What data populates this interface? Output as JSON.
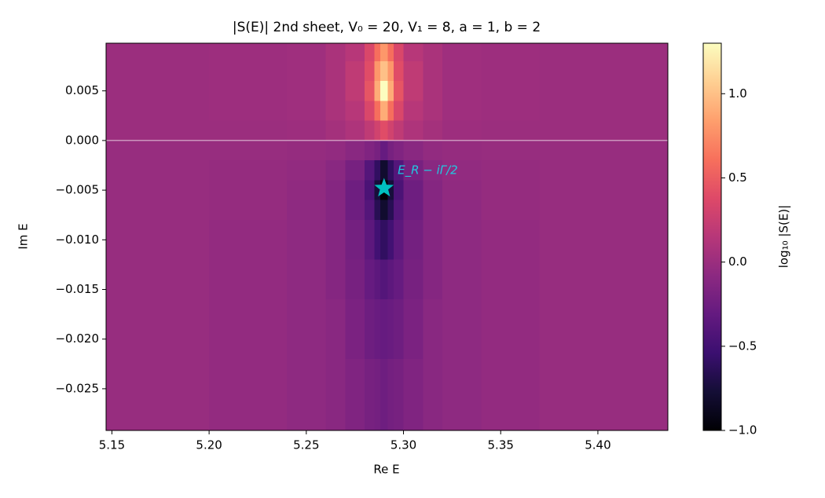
{
  "chart_data": {
    "type": "heatmap",
    "title": "|S(E)| 2nd sheet, V₀ = 20, V₁ = 8, a = 1, b = 2",
    "x_label": "Re E",
    "y_label": "Im E",
    "xlim": [
      5.147,
      5.436
    ],
    "ylim": [
      -0.0292,
      0.0098
    ],
    "xticks": [
      {
        "value": 5.15,
        "label": "5.15"
      },
      {
        "value": 5.2,
        "label": "5.20"
      },
      {
        "value": 5.25,
        "label": "5.25"
      },
      {
        "value": 5.3,
        "label": "5.30"
      },
      {
        "value": 5.35,
        "label": "5.35"
      },
      {
        "value": 5.4,
        "label": "5.40"
      }
    ],
    "yticks": [
      {
        "value": 0.005,
        "label": "0.005"
      },
      {
        "value": 0,
        "label": "0.000"
      },
      {
        "value": -0.005,
        "label": "−0.005"
      },
      {
        "value": -0.01,
        "label": "−0.010"
      },
      {
        "value": -0.015,
        "label": "−0.015"
      },
      {
        "value": -0.02,
        "label": "−0.020"
      },
      {
        "value": -0.025,
        "label": "−0.025"
      }
    ],
    "x_edges": [
      5.147,
      5.2,
      5.24,
      5.26,
      5.27,
      5.28,
      5.285,
      5.288,
      5.292,
      5.295,
      5.3,
      5.31,
      5.32,
      5.34,
      5.37,
      5.436
    ],
    "y_edges": [
      0.0098,
      0.008,
      0.006,
      0.004,
      0.002,
      0.0,
      -0.002,
      -0.004,
      -0.006,
      -0.008,
      -0.012,
      -0.016,
      -0.022,
      -0.0292
    ],
    "z": [
      [
        0.0,
        0.01,
        0.02,
        0.08,
        0.15,
        0.35,
        0.6,
        0.8,
        0.6,
        0.35,
        0.15,
        0.08,
        0.02,
        0.01,
        0.0
      ],
      [
        0.0,
        0.01,
        0.02,
        0.08,
        0.2,
        0.4,
        0.8,
        1.0,
        0.8,
        0.4,
        0.2,
        0.08,
        0.02,
        0.01,
        0.0
      ],
      [
        0.0,
        0.01,
        0.02,
        0.08,
        0.2,
        0.45,
        0.9,
        1.3,
        0.9,
        0.45,
        0.2,
        0.08,
        0.02,
        0.01,
        0.0
      ],
      [
        0.0,
        0.01,
        0.02,
        0.08,
        0.15,
        0.35,
        0.6,
        0.9,
        0.6,
        0.35,
        0.15,
        0.08,
        0.02,
        0.01,
        0.0
      ],
      [
        0.0,
        0.0,
        0.01,
        0.05,
        0.1,
        0.2,
        0.3,
        0.4,
        0.3,
        0.2,
        0.1,
        0.05,
        0.01,
        0.0,
        0.0
      ],
      [
        -0.02,
        -0.02,
        -0.03,
        -0.05,
        -0.1,
        -0.15,
        -0.2,
        -0.3,
        -0.2,
        -0.15,
        -0.1,
        -0.05,
        -0.03,
        -0.02,
        -0.02
      ],
      [
        -0.02,
        -0.03,
        -0.05,
        -0.1,
        -0.2,
        -0.4,
        -0.6,
        -0.8,
        -0.6,
        -0.4,
        -0.2,
        -0.1,
        -0.05,
        -0.03,
        -0.02
      ],
      [
        -0.02,
        -0.03,
        -0.06,
        -0.12,
        -0.25,
        -0.45,
        -0.75,
        -1.0,
        -0.75,
        -0.45,
        -0.25,
        -0.12,
        -0.06,
        -0.03,
        -0.02
      ],
      [
        -0.02,
        -0.03,
        -0.07,
        -0.12,
        -0.25,
        -0.4,
        -0.65,
        -0.8,
        -0.65,
        -0.4,
        -0.25,
        -0.12,
        -0.07,
        -0.03,
        -0.02
      ],
      [
        -0.02,
        -0.04,
        -0.07,
        -0.12,
        -0.22,
        -0.35,
        -0.5,
        -0.6,
        -0.5,
        -0.35,
        -0.22,
        -0.12,
        -0.07,
        -0.04,
        -0.02
      ],
      [
        -0.02,
        -0.04,
        -0.07,
        -0.12,
        -0.2,
        -0.3,
        -0.35,
        -0.4,
        -0.35,
        -0.3,
        -0.2,
        -0.12,
        -0.07,
        -0.04,
        -0.02
      ],
      [
        -0.02,
        -0.04,
        -0.07,
        -0.1,
        -0.18,
        -0.25,
        -0.28,
        -0.3,
        -0.28,
        -0.25,
        -0.18,
        -0.1,
        -0.07,
        -0.04,
        -0.02
      ],
      [
        -0.02,
        -0.04,
        -0.07,
        -0.1,
        -0.15,
        -0.2,
        -0.22,
        -0.25,
        -0.22,
        -0.2,
        -0.15,
        -0.1,
        -0.07,
        -0.04,
        -0.02
      ]
    ],
    "colormap": [
      "#000004",
      "#140e36",
      "#3b0f70",
      "#641a80",
      "#8c2981",
      "#b73779",
      "#de4968",
      "#f7705c",
      "#fe9f6d",
      "#fecf92",
      "#fcfdbf"
    ],
    "clim": [
      -1.0,
      1.3
    ],
    "colorbar_label": "log₁₀ |S(E)|",
    "colorbar_ticks": [
      {
        "value": -1.0,
        "label": "−1.0"
      },
      {
        "value": -0.5,
        "label": "−0.5"
      },
      {
        "value": 0.0,
        "label": "0.0"
      },
      {
        "value": 0.5,
        "label": "0.5"
      },
      {
        "value": 1.0,
        "label": "1.0"
      }
    ],
    "hline": {
      "y": 0,
      "color": "#ffffff"
    },
    "point": {
      "x": 5.29,
      "y": -0.0048,
      "color": "#00bfbf"
    },
    "annotation": {
      "text": "E_R − iΓ/2",
      "x": 5.297,
      "y": -0.003,
      "color": "#22c8e0"
    }
  }
}
